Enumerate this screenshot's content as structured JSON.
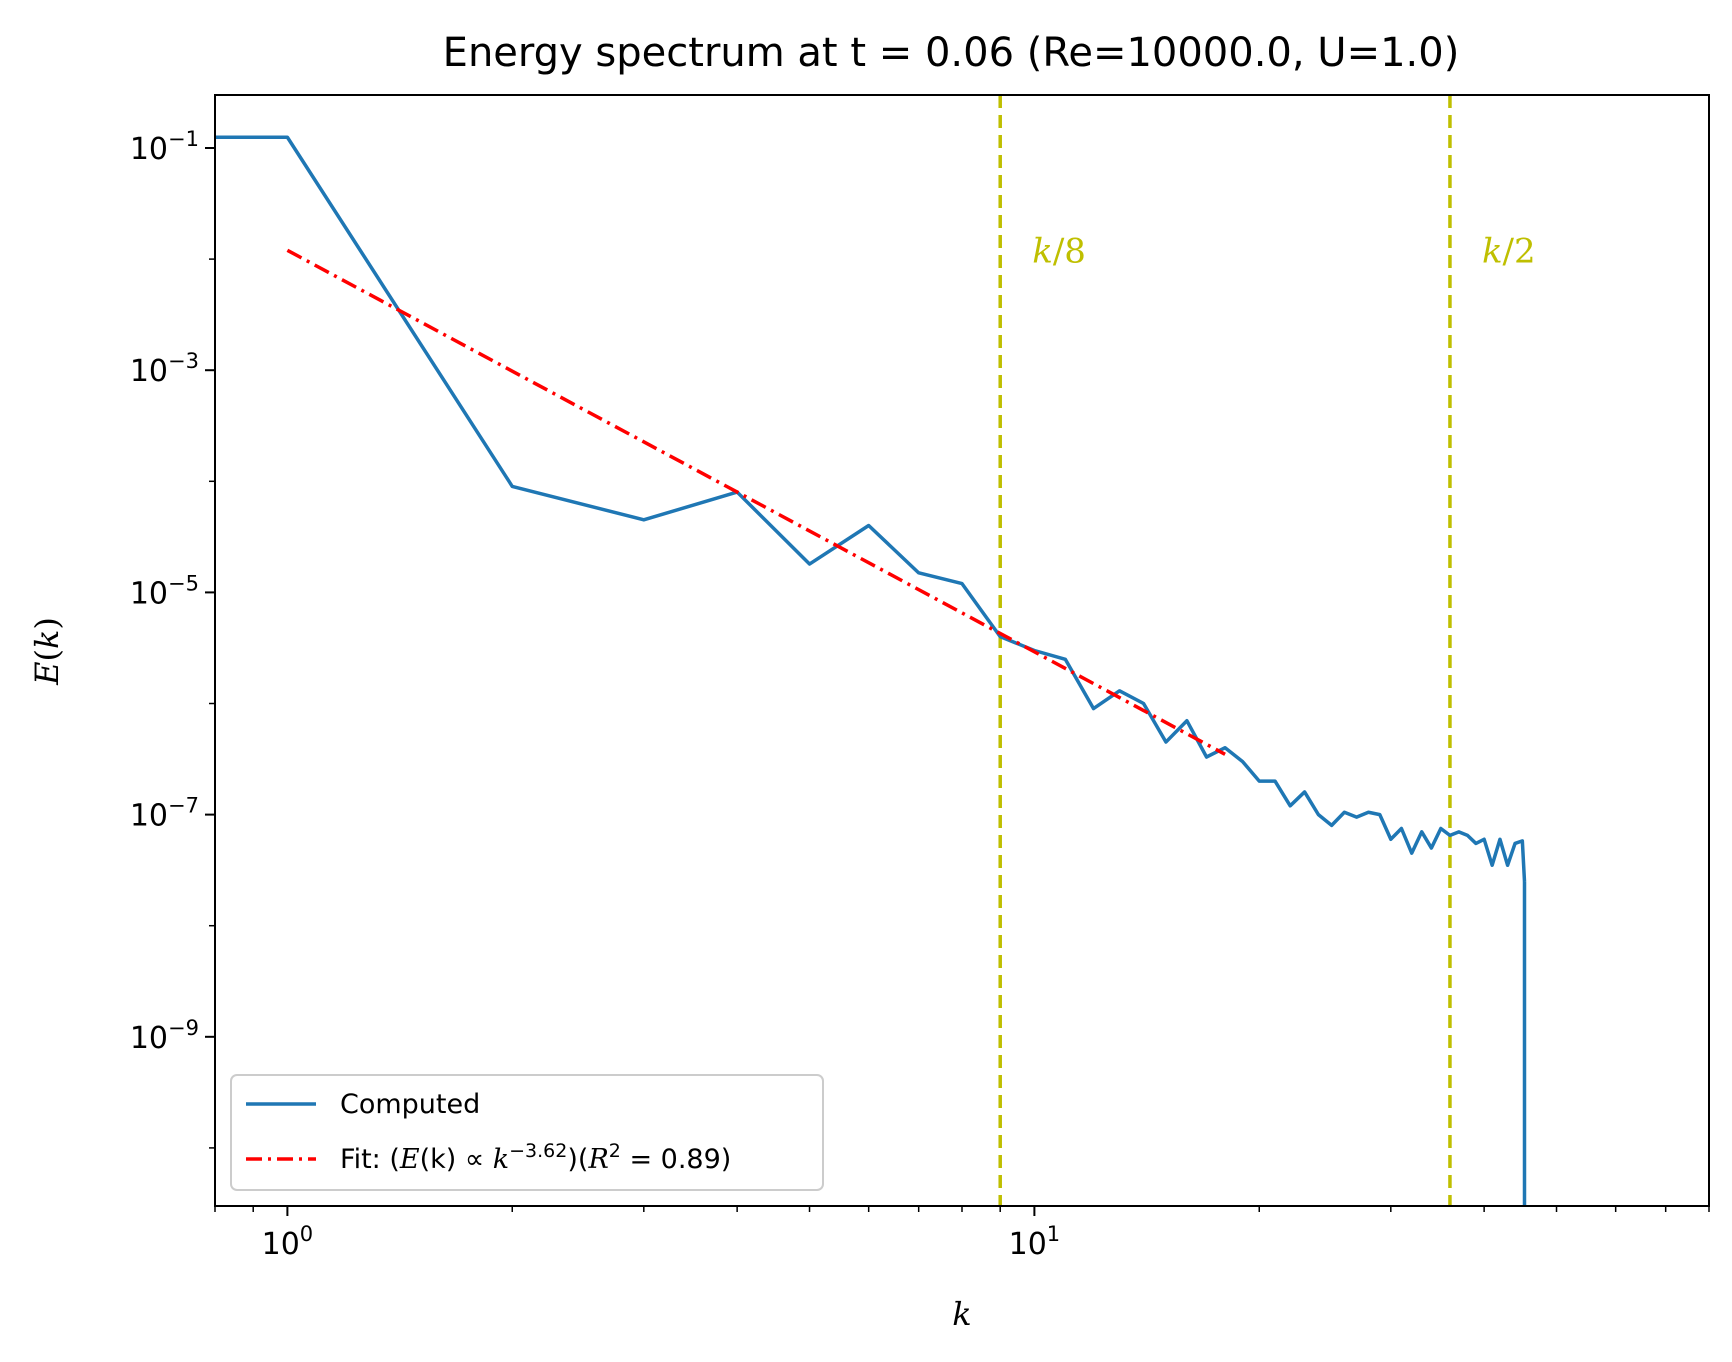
{
  "chart_data": {
    "type": "line",
    "title": "Energy spectrum at t = 0.06 (Re=10000.0, U=1.0)",
    "xlabel": "k",
    "ylabel": "E(k)",
    "xscale": "log",
    "yscale": "log",
    "xlim": [
      0.8,
      80
    ],
    "ylim": [
      3e-11,
      0.3
    ],
    "x_ticks": [
      {
        "value": 1,
        "base": "10",
        "exp": "0"
      },
      {
        "value": 10,
        "base": "10",
        "exp": "1"
      }
    ],
    "y_ticks": [
      {
        "value": 0.1,
        "base": "10",
        "exp": "−1"
      },
      {
        "value": 0.001,
        "base": "10",
        "exp": "−3"
      },
      {
        "value": 1e-05,
        "base": "10",
        "exp": "−5"
      },
      {
        "value": 1e-07,
        "base": "10",
        "exp": "−7"
      },
      {
        "value": 1e-09,
        "base": "10",
        "exp": "−9"
      }
    ],
    "grid": false,
    "legend_position": "lower-left",
    "series": [
      {
        "name": "Computed",
        "style": "solid",
        "color": "#1f77b4",
        "x": [
          0.8,
          1,
          2,
          3,
          4,
          5,
          6,
          7,
          8,
          9,
          10,
          11,
          12,
          13,
          14,
          15,
          16,
          17,
          18,
          19,
          20,
          21,
          22,
          23,
          24,
          25,
          26,
          27,
          28,
          29,
          30,
          31,
          32,
          33,
          34,
          35,
          36,
          37,
          38,
          39,
          40,
          41,
          42,
          43,
          44,
          45,
          45.3
        ],
        "y": [
          0.125,
          0.125,
          9e-05,
          4.5e-05,
          8e-05,
          1.8e-05,
          4e-05,
          1.5e-05,
          1.2e-05,
          4e-06,
          3e-06,
          2.5e-06,
          9e-07,
          1.3e-06,
          1e-06,
          4.5e-07,
          7e-07,
          3.3e-07,
          4e-07,
          3e-07,
          2e-07,
          2e-07,
          1.2e-07,
          1.6e-07,
          1e-07,
          8e-08,
          1.05e-07,
          9.5e-08,
          1.05e-07,
          1e-07,
          6e-08,
          7.5e-08,
          4.5e-08,
          7e-08,
          5e-08,
          7.5e-08,
          6.5e-08,
          7e-08,
          6.5e-08,
          5.5e-08,
          6e-08,
          3.5e-08,
          6e-08,
          3.5e-08,
          5.5e-08,
          5.8e-08,
          2.5e-08
        ]
      },
      {
        "name": "Fit: (E(k) ∝ k^{−3.62})(R^{2} = 0.89)",
        "style": "dashdot",
        "color": "#ff0000",
        "x": [
          1,
          18
        ],
        "y": [
          0.012,
          3.49e-07
        ]
      }
    ],
    "cutoff": {
      "x": 45.3,
      "y_from": 2.5e-08,
      "y_to": 3e-11
    },
    "vlines": [
      {
        "x": 9,
        "label_k": "k",
        "label_rest": "/8",
        "color": "#bfbf00",
        "label_y": 0.012
      },
      {
        "x": 36,
        "label_k": "k",
        "label_rest": "/2",
        "color": "#bfbf00",
        "label_y": 0.012
      }
    ],
    "legend": {
      "computed": "Computed",
      "fit_prefix": "Fit: (",
      "fit_E": "E",
      "fit_paren_k": "(k) ∝ ",
      "fit_k": "k",
      "fit_exp": "−3.62",
      "fit_mid": ")(",
      "fit_R": "R",
      "fit_R_exp": "2",
      "fit_end": " = 0.89)"
    }
  }
}
